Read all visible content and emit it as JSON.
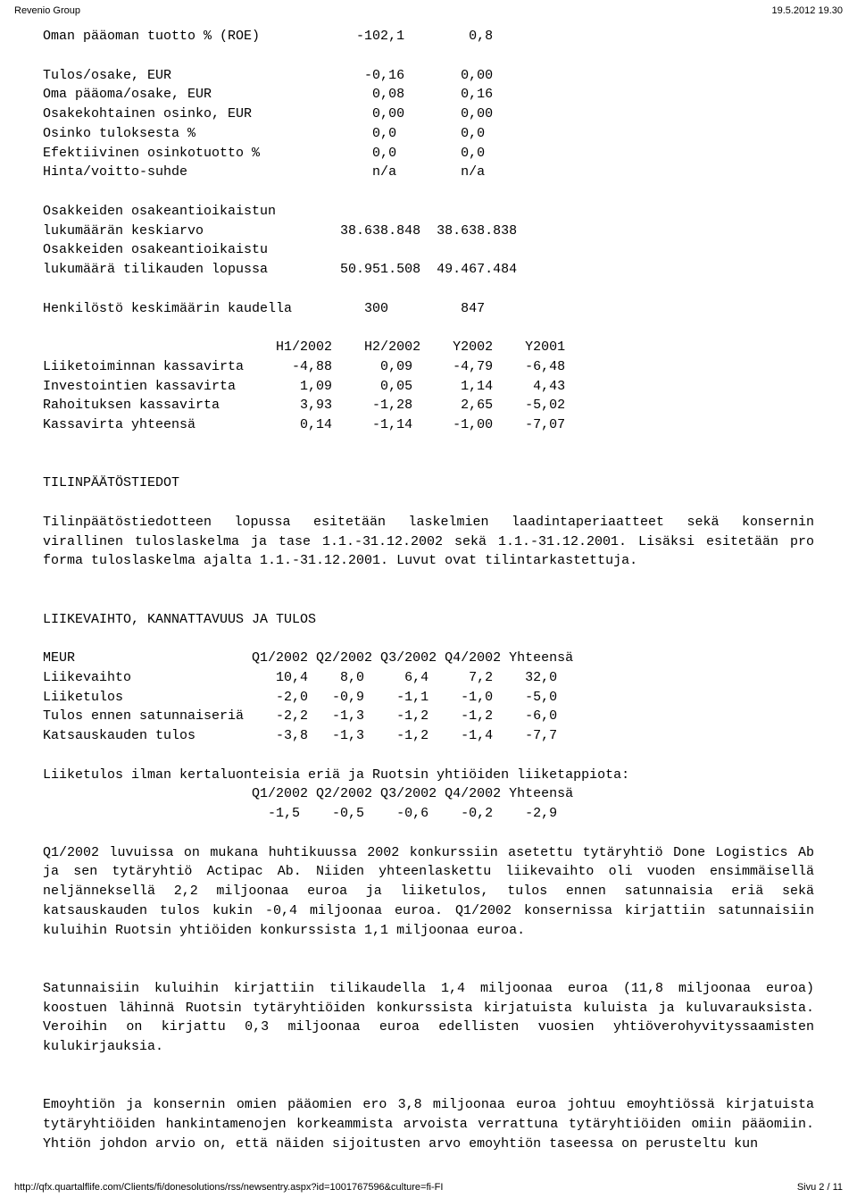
{
  "header": {
    "left": "Revenio Group",
    "right": "19.5.2012 19.30"
  },
  "footer": {
    "url": "http://qfx.quartalflife.com/Clients/fi/donesolutions/rss/newsentry.aspx?id=1001767596&culture=fi-FI",
    "page": "Sivu 2 / 11"
  },
  "block1": "Oman pääoman tuotto % (ROE)            -102,1        0,8\n\nTulos/osake, EUR                        -0,16       0,00\nOma pääoma/osake, EUR                    0,08       0,16\nOsakekohtainen osinko, EUR               0,00       0,00\nOsinko tuloksesta %                      0,0        0,0\nEfektiivinen osinkotuotto %              0,0        0,0\nHinta/voitto-suhde                       n/a        n/a\n\nOsakkeiden osakeantioikaistun\nlukumäärän keskiarvo                 38.638.848  38.638.838\nOsakkeiden osakeantioikaistu\nlukumäärä tilikauden lopussa         50.951.508  49.467.484\n\nHenkilöstö keskimäärin kaudella         300         847\n\n                             H1/2002    H2/2002    Y2002    Y2001\nLiiketoiminnan kassavirta      -4,88      0,09     -4,79    -6,48\nInvestointien kassavirta        1,09      0,05      1,14     4,43\nRahoituksen kassavirta          3,93     -1,28      2,65    -5,02\nKassavirta yhteensä             0,14     -1,14     -1,00    -7,07\n\n\nTILINPÄÄTÖSTIEDOT\n",
  "para1": "Tilinpäätöstiedotteen lopussa esitetään laskelmien laadintaperiaatteet sekä konsernin virallinen tuloslaskelma ja tase 1.1.-31.12.2002 sekä 1.1.-31.12.2001. Lisäksi esitetään pro forma tuloslaskelma ajalta 1.1.-31.12.2001. Luvut ovat tilintarkastettuja.",
  "block2": "\n\nLIIKEVAIHTO, KANNATTAVUUS JA TULOS\n\nMEUR                      Q1/2002 Q2/2002 Q3/2002 Q4/2002 Yhteensä\nLiikevaihto                  10,4    8,0     6,4     7,2    32,0\nLiiketulos                   -2,0   -0,9    -1,1    -1,0    -5,0\nTulos ennen satunnaiseriä    -2,2   -1,3    -1,2    -1,2    -6,0\nKatsauskauden tulos          -3,8   -1,3    -1,2    -1,4    -7,7\n",
  "para2a": "Liiketulos  ilman  kertaluonteisia  eriä  ja  Ruotsin  yhtiöiden liiketappiota:",
  "block3": "                          Q1/2002 Q2/2002 Q3/2002 Q4/2002 Yhteensä\n                            -1,5    -0,5    -0,6    -0,2    -2,9\n",
  "para3": "Q1/2002 luvuissa on mukana huhtikuussa 2002 konkurssiin asetettu tytäryhtiö Done Logistics Ab ja sen tytäryhtiö Actipac Ab. Niiden yhteenlaskettu liikevaihto oli vuoden ensimmäisellä neljänneksellä 2,2 miljoonaa euroa ja liiketulos, tulos ennen satunnaisia eriä sekä katsauskauden tulos kukin -0,4 miljoonaa euroa. Q1/2002 konsernissa kirjattiin satunnaisiin kuluihin Ruotsin yhtiöiden konkurssista 1,1 miljoonaa euroa.",
  "para4": "Satunnaisiin kuluihin kirjattiin tilikaudella 1,4 miljoonaa euroa (11,8 miljoonaa euroa) koostuen lähinnä Ruotsin tytäryhtiöiden konkurssista kirjatuista kuluista ja kuluvarauksista. Veroihin on kirjattu 0,3 miljoonaa euroa edellisten vuosien yhtiöverohyvityssaamisten kulukirjauksia.",
  "para5": "Emoyhtiön ja konsernin omien pääomien ero 3,8 miljoonaa euroa johtuu emoyhtiössä kirjatuista tytäryhtiöiden hankintamenojen korkeammista arvoista verrattuna tytäryhtiöiden omiin pääomiin. Yhtiön johdon arvio on, että näiden sijoitusten arvo emoyhtiön taseessa on perusteltu kun"
}
